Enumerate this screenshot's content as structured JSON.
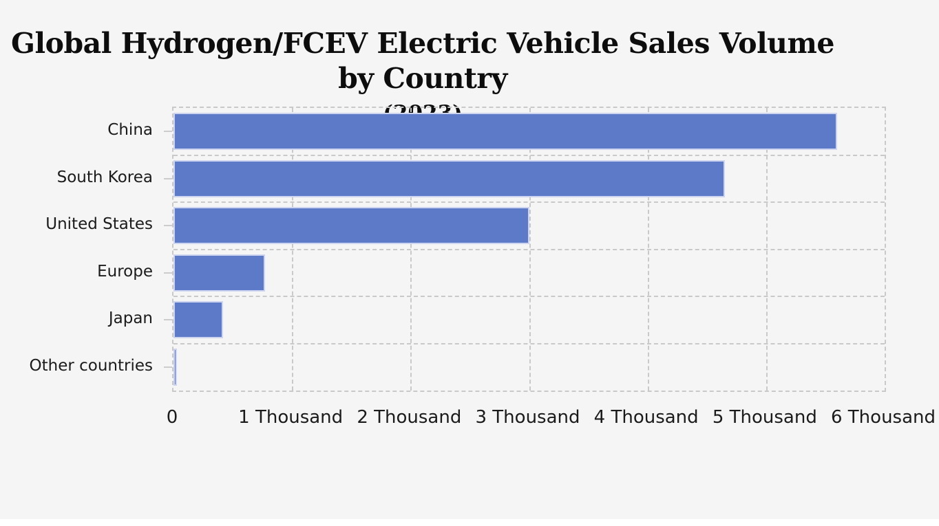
{
  "title": {
    "line1": "Global Hydrogen/FCEV Electric Vehicle Sales Volume by Country",
    "line2": "(2023)"
  },
  "chart_data": {
    "type": "bar",
    "orientation": "horizontal",
    "title": "Global Hydrogen/FCEV Electric Vehicle Sales Volume by Country (2023)",
    "categories": [
      "China",
      "South Korea",
      "United States",
      "Europe",
      "Japan",
      "Other countries"
    ],
    "values": [
      5600,
      4650,
      3000,
      770,
      420,
      30
    ],
    "x_tick_labels": [
      "0",
      "1 Thousand",
      "2 Thousand",
      "3 Thousand",
      "4 Thousand",
      "5 Thousand",
      "6 Thousand"
    ],
    "x_tick_values": [
      0,
      1000,
      2000,
      3000,
      4000,
      5000,
      6000
    ],
    "xlim": [
      0,
      6000
    ],
    "xlabel": "",
    "ylabel": "",
    "grid": "dashed",
    "legend": "none",
    "bar_color": "#5c7ac8",
    "bar_border_color": "#ccd4ef",
    "grid_color": "#c9c9c9",
    "background_color": "#f4f5f4",
    "text_color": "#1b1b1b"
  }
}
